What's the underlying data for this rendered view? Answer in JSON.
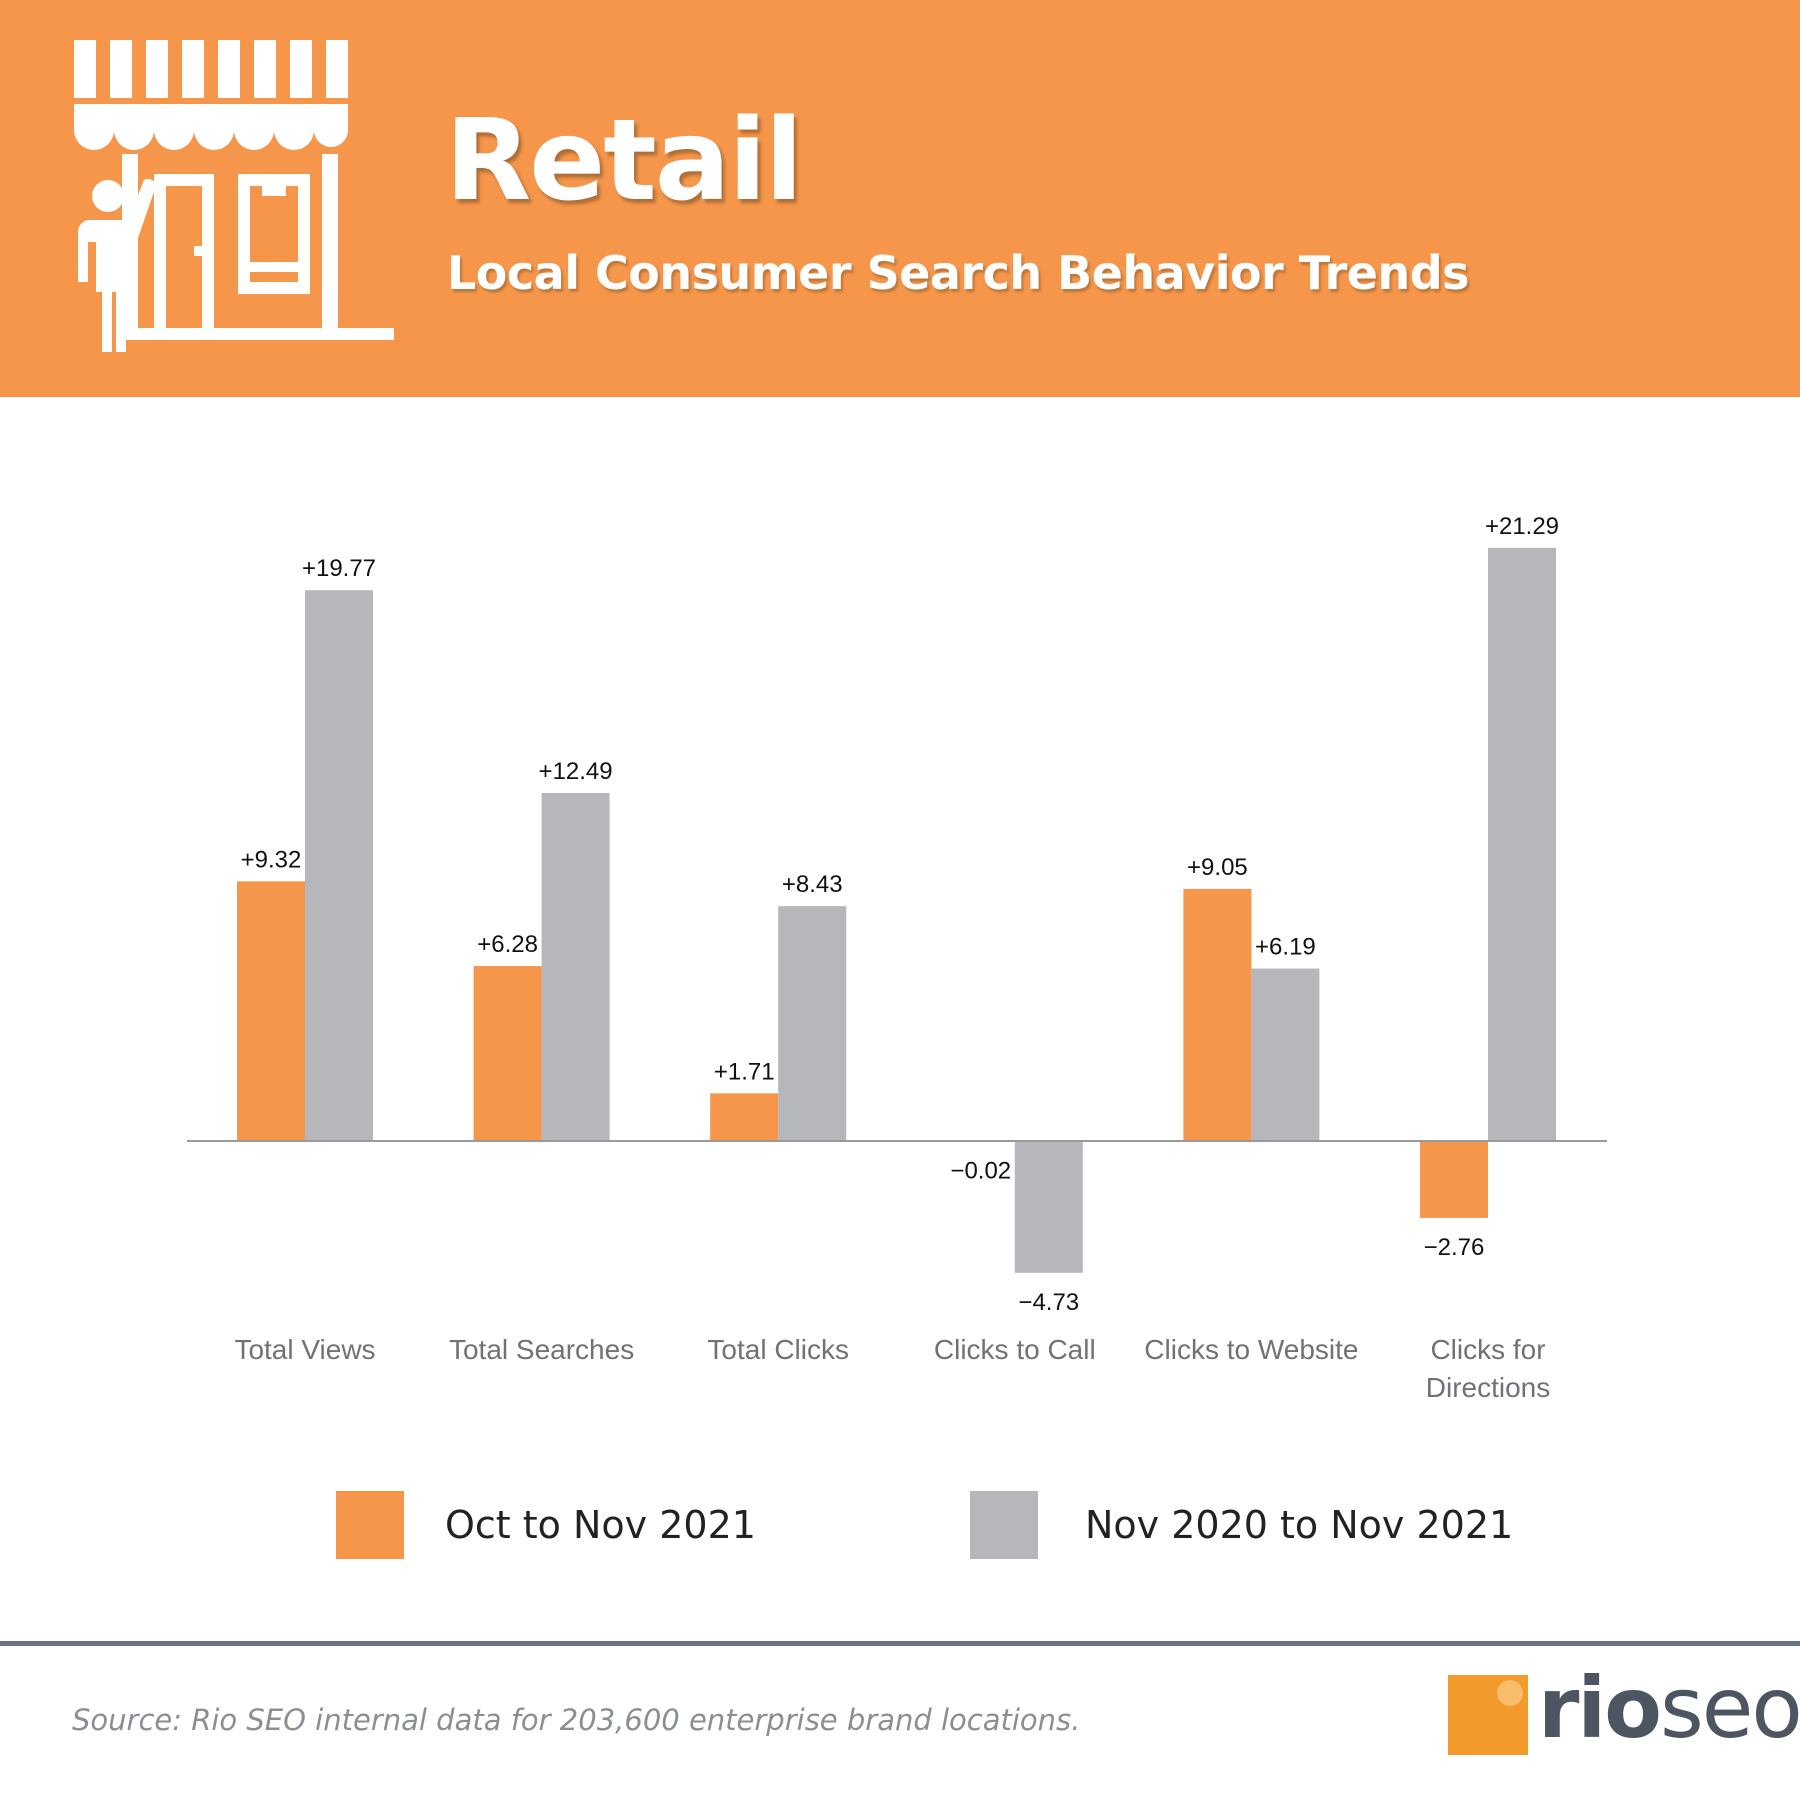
{
  "header": {
    "title": "Retail",
    "subtitle": "Local Consumer Search Behavior Trends"
  },
  "colors": {
    "header_bg": "#f5964b",
    "series1": "#f5964b",
    "series2": "#b6b7bb"
  },
  "chart_data": {
    "type": "bar",
    "title": "Retail — Local Consumer Search Behavior Trends",
    "xlabel": "",
    "ylabel": "",
    "ylim": [
      -6,
      23
    ],
    "categories": [
      "Total Views",
      "Total Searches",
      "Total Clicks",
      "Clicks to Call",
      "Clicks to Website",
      "Clicks for Directions"
    ],
    "series": [
      {
        "name": "Oct to Nov 2021",
        "color": "#f5964b",
        "values": [
          9.32,
          6.28,
          1.71,
          -0.02,
          9.05,
          -2.76
        ],
        "labels": [
          "+9.32",
          "+6.28",
          "+1.71",
          "−0.02",
          "+9.05",
          "−2.76"
        ]
      },
      {
        "name": "Nov 2020 to Nov 2021",
        "color": "#b6b7bb",
        "values": [
          19.77,
          12.49,
          8.43,
          -4.73,
          6.19,
          21.29
        ],
        "labels": [
          "+19.77",
          "+12.49",
          "+8.43",
          "−4.73",
          "+6.19",
          "+21.29"
        ]
      }
    ],
    "legend_position": "bottom"
  },
  "legend": {
    "series1_label": "Oct to Nov 2021",
    "series2_label": "Nov 2020 to Nov 2021"
  },
  "footer": {
    "source": "Source: Rio SEO internal data for 203,600 enterprise brand locations.",
    "logo_rio": "rio",
    "logo_seo": "seo"
  }
}
